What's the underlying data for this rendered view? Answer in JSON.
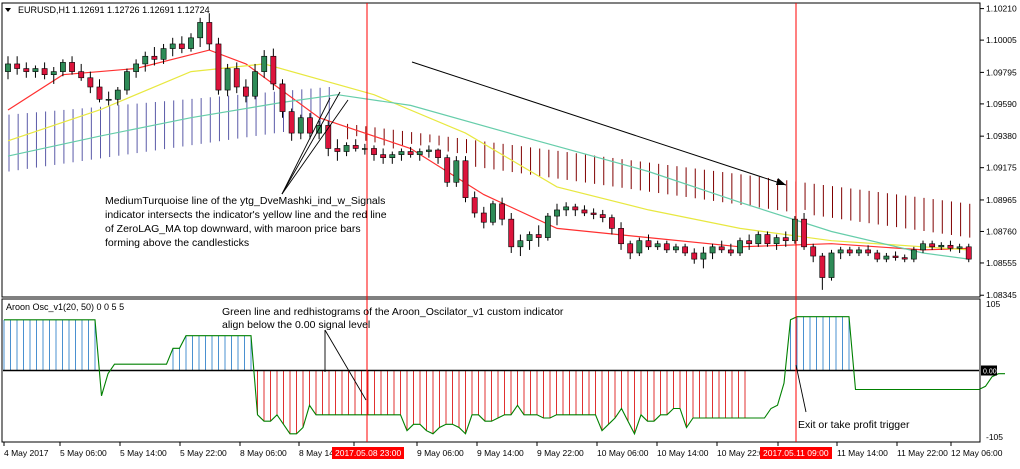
{
  "main_panel": {
    "symbol_label": "EURUSD,H1",
    "ohlc_label": "1.12691 1.12726 1.12691 1.12724",
    "y_ticks": [
      "1.10210",
      "1.10005",
      "1.09795",
      "1.09590",
      "1.09380",
      "1.09175",
      "1.08965",
      "1.08760",
      "1.08555",
      "1.08345"
    ],
    "annotation": [
      "MediumTurquoise line of the ytg_DveMashki_ind_w_Signals",
      "indicator intersects the indicator's yellow line and the red line",
      "of ZeroLAG_MA  top downward, with maroon price bars",
      "forming above the candlesticks"
    ]
  },
  "osc_panel": {
    "title": "Aroon Osc_v1(20, 50) 0 0 5 5",
    "y_ticks": [
      "105",
      "-105"
    ],
    "level_label": "0.00",
    "annotation": [
      "Green line and redhistograms of the Aroon_Oscilator_v1 custom indicator",
      "align below the 0.00 signal level"
    ],
    "exit_label": "Exit or take profit trigger"
  },
  "x_axis": {
    "labels": [
      "4 May 2017",
      "5 May 06:00",
      "5 May 14:00",
      "5 May 22:00",
      "8 May 06:00",
      "8 May 14:00",
      "8 May 22:00",
      "9 May 06:00",
      "9 May 14:00",
      "9 May 22:00",
      "10 May 06:00",
      "10 May 14:00",
      "10 May 22:00",
      "11 May 06:00",
      "11 May 14:00",
      "11 May 22:00",
      "12 May 06:00"
    ],
    "markers": [
      "2017.05.08 23:00",
      "2017.05.11 09:00"
    ]
  },
  "colors": {
    "bull": "#2e8b57",
    "bear": "#dc143c",
    "zerolag": "#ff3030",
    "yellow": "#e8e840",
    "turquoise": "#66cdaa",
    "blue_bars": "#5a5aa8",
    "maroon_bars": "#800000",
    "osc_line": "#008000",
    "osc_red": "#e03030",
    "osc_blue": "#4a90d0",
    "marker": "#ff0000"
  },
  "chart_data": [
    {
      "type": "candlestick",
      "x_range": [
        "2017-05-04",
        "2017-05-12 06:00"
      ],
      "ylim": [
        1.0834,
        1.1024
      ],
      "markers": [
        "2017.05.08 23:00",
        "2017.05.11 09:00"
      ],
      "candles": [
        [
          1.098,
          1.099,
          1.0975,
          1.0985
        ],
        [
          1.0985,
          1.099,
          1.0978,
          1.0982
        ],
        [
          1.0982,
          1.0986,
          1.0976,
          1.098
        ],
        [
          1.098,
          1.0984,
          1.0976,
          1.0982
        ],
        [
          1.0982,
          1.0986,
          1.0975,
          1.0978
        ],
        [
          1.0978,
          1.0983,
          1.0972,
          1.098
        ],
        [
          1.098,
          1.0988,
          1.0977,
          1.0986
        ],
        [
          1.0986,
          1.099,
          1.0978,
          1.098
        ],
        [
          1.098,
          1.0985,
          1.0974,
          1.0976
        ],
        [
          1.0976,
          1.098,
          1.0966,
          1.097
        ],
        [
          1.097,
          1.0975,
          1.096,
          1.0962
        ],
        [
          1.0962,
          1.0967,
          1.0958,
          1.0962
        ],
        [
          1.0962,
          1.097,
          1.0958,
          1.0968
        ],
        [
          1.0968,
          1.0982,
          1.0965,
          1.098
        ],
        [
          1.098,
          1.0988,
          1.0976,
          1.0985
        ],
        [
          1.0985,
          1.0993,
          1.098,
          1.099
        ],
        [
          1.099,
          1.0996,
          1.0984,
          1.0988
        ],
        [
          1.0988,
          1.0998,
          1.0985,
          1.0995
        ],
        [
          1.0995,
          1.1002,
          1.099,
          1.0998
        ],
        [
          1.0998,
          1.1003,
          1.0992,
          1.0995
        ],
        [
          1.0995,
          1.1005,
          1.0993,
          1.1002
        ],
        [
          1.1002,
          1.1015,
          1.0996,
          1.1012
        ],
        [
          1.1012,
          1.1018,
          1.0994,
          1.0998
        ],
        [
          1.0998,
          1.1002,
          1.0965,
          1.0968
        ],
        [
          1.0968,
          1.0985,
          1.0964,
          1.0982
        ],
        [
          1.0982,
          1.0986,
          1.0966,
          1.097
        ],
        [
          1.097,
          1.0975,
          1.096,
          1.0964
        ],
        [
          1.0964,
          1.0985,
          1.0962,
          1.098
        ],
        [
          1.098,
          1.0994,
          1.0976,
          1.099
        ],
        [
          1.099,
          1.0995,
          1.0968,
          1.0972
        ],
        [
          1.0972,
          1.0975,
          1.095,
          1.0954
        ],
        [
          1.0954,
          1.0956,
          1.0935,
          1.094
        ],
        [
          1.094,
          1.0952,
          1.0936,
          1.095
        ],
        [
          1.095,
          1.0953,
          1.0936,
          1.094
        ],
        [
          1.094,
          1.0948,
          1.0936,
          1.0945
        ],
        [
          1.0945,
          1.0948,
          1.0925,
          1.093
        ],
        [
          1.093,
          1.0936,
          1.0922,
          1.0928
        ],
        [
          1.0928,
          1.0934,
          1.0925,
          1.0932
        ],
        [
          1.0932,
          1.0936,
          1.0928,
          1.093
        ],
        [
          1.093,
          1.0933,
          1.0926,
          1.093
        ],
        [
          1.093,
          1.0932,
          1.0922,
          1.0926
        ],
        [
          1.0926,
          1.093,
          1.092,
          1.0924
        ],
        [
          1.0924,
          1.0928,
          1.092,
          1.0926
        ],
        [
          1.0926,
          1.093,
          1.0922,
          1.0928
        ],
        [
          1.0928,
          1.0931,
          1.0924,
          1.0926
        ],
        [
          1.0926,
          1.093,
          1.0922,
          1.0928
        ],
        [
          1.0928,
          1.0932,
          1.0924,
          1.0929
        ],
        [
          1.0929,
          1.093,
          1.092,
          1.0924
        ],
        [
          1.0924,
          1.0926,
          1.0905,
          1.0908
        ],
        [
          1.0908,
          1.0925,
          1.0905,
          1.0922
        ],
        [
          1.0922,
          1.0925,
          1.0895,
          1.0898
        ],
        [
          1.0898,
          1.0902,
          1.0885,
          1.0888
        ],
        [
          1.0888,
          1.0892,
          1.0878,
          1.0882
        ],
        [
          1.0882,
          1.0896,
          1.088,
          1.0894
        ],
        [
          1.0894,
          1.0898,
          1.088,
          1.0884
        ],
        [
          1.0884,
          1.0888,
          1.0862,
          1.0866
        ],
        [
          1.0866,
          1.0874,
          1.086,
          1.087
        ],
        [
          1.087,
          1.0876,
          1.0864,
          1.0874
        ],
        [
          1.0874,
          1.088,
          1.0866,
          1.0872
        ],
        [
          1.0872,
          1.0888,
          1.087,
          1.0886
        ],
        [
          1.0886,
          1.0894,
          1.088,
          1.089
        ],
        [
          1.089,
          1.0895,
          1.0886,
          1.0892
        ],
        [
          1.0892,
          1.0894,
          1.0886,
          1.089
        ],
        [
          1.089,
          1.0893,
          1.0886,
          1.0888
        ],
        [
          1.0888,
          1.0891,
          1.0884,
          1.0887
        ],
        [
          1.0887,
          1.089,
          1.0882,
          1.0885
        ],
        [
          1.0885,
          1.0887,
          1.0874,
          1.0878
        ],
        [
          1.0878,
          1.0882,
          1.0864,
          1.0868
        ],
        [
          1.0868,
          1.087,
          1.0858,
          1.0862
        ],
        [
          1.0862,
          1.0872,
          1.086,
          1.087
        ],
        [
          1.087,
          1.0874,
          1.0864,
          1.0866
        ],
        [
          1.0866,
          1.087,
          1.0864,
          1.0868
        ],
        [
          1.0868,
          1.087,
          1.0862,
          1.0864
        ],
        [
          1.0864,
          1.0868,
          1.0862,
          1.0866
        ],
        [
          1.0866,
          1.0868,
          1.086,
          1.0862
        ],
        [
          1.0862,
          1.0865,
          1.0855,
          1.0858
        ],
        [
          1.0858,
          1.0866,
          1.0852,
          1.0862
        ],
        [
          1.0862,
          1.0868,
          1.0858,
          1.0866
        ],
        [
          1.0866,
          1.087,
          1.0862,
          1.0864
        ],
        [
          1.0864,
          1.0868,
          1.086,
          1.0862
        ],
        [
          1.0862,
          1.0872,
          1.086,
          1.087
        ],
        [
          1.087,
          1.0874,
          1.0864,
          1.0868
        ],
        [
          1.0868,
          1.0876,
          1.0866,
          1.0874
        ],
        [
          1.0874,
          1.0876,
          1.0866,
          1.0868
        ],
        [
          1.0868,
          1.0874,
          1.0864,
          1.0872
        ],
        [
          1.0872,
          1.0876,
          1.0866,
          1.087
        ],
        [
          1.087,
          1.0886,
          1.0868,
          1.0884
        ],
        [
          1.0884,
          1.0888,
          1.0864,
          1.0866
        ],
        [
          1.0866,
          1.0868,
          1.0856,
          1.086
        ],
        [
          1.086,
          1.0862,
          1.0838,
          1.0846
        ],
        [
          1.0846,
          1.0864,
          1.0844,
          1.0862
        ],
        [
          1.0862,
          1.0866,
          1.0858,
          1.0864
        ],
        [
          1.0864,
          1.0866,
          1.086,
          1.0862
        ],
        [
          1.0862,
          1.0866,
          1.086,
          1.0864
        ],
        [
          1.0864,
          1.0867,
          1.086,
          1.0862
        ],
        [
          1.0862,
          1.0864,
          1.0856,
          1.0858
        ],
        [
          1.0858,
          1.0862,
          1.0856,
          1.086
        ],
        [
          1.086,
          1.0863,
          1.0857,
          1.0859
        ],
        [
          1.0859,
          1.0861,
          1.0856,
          1.0858
        ],
        [
          1.0858,
          1.0866,
          1.0856,
          1.0864
        ],
        [
          1.0864,
          1.087,
          1.0862,
          1.0868
        ],
        [
          1.0868,
          1.087,
          1.0864,
          1.0866
        ],
        [
          1.0866,
          1.0869,
          1.0864,
          1.0867
        ],
        [
          1.0867,
          1.087,
          1.0863,
          1.0865
        ],
        [
          1.0865,
          1.0868,
          1.0862,
          1.0866
        ],
        [
          1.0866,
          1.0868,
          1.0856,
          1.0858
        ]
      ],
      "series": [
        {
          "type": "line",
          "name": "ZeroLAG_MA",
          "values": [
            [
              0,
              1.0955
            ],
            [
              6,
              1.0978
            ],
            [
              14,
              1.0982
            ],
            [
              22,
              1.0994
            ],
            [
              26,
              1.0985
            ],
            [
              34,
              1.095
            ],
            [
              44,
              1.093
            ],
            [
              52,
              1.09
            ],
            [
              60,
              1.0878
            ],
            [
              70,
              1.0872
            ],
            [
              80,
              1.0866
            ],
            [
              90,
              1.0868
            ],
            [
              100,
              1.0864
            ],
            [
              105,
              1.0865
            ]
          ]
        },
        {
          "type": "line",
          "name": "yellow",
          "values": [
            [
              0,
              1.0935
            ],
            [
              10,
              1.0955
            ],
            [
              20,
              1.098
            ],
            [
              28,
              1.0985
            ],
            [
              40,
              1.0965
            ],
            [
              50,
              1.094
            ],
            [
              60,
              1.0905
            ],
            [
              70,
              1.089
            ],
            [
              80,
              1.0878
            ],
            [
              90,
              1.087
            ],
            [
              100,
              1.0866
            ],
            [
              105,
              1.0864
            ]
          ]
        },
        {
          "type": "line",
          "name": "MediumTurquoise",
          "values": [
            [
              0,
              1.0925
            ],
            [
              10,
              1.0938
            ],
            [
              20,
              1.095
            ],
            [
              30,
              1.096
            ],
            [
              36,
              1.0965
            ],
            [
              44,
              1.0958
            ],
            [
              56,
              1.0938
            ],
            [
              70,
              1.0915
            ],
            [
              80,
              1.0895
            ],
            [
              90,
              1.0876
            ],
            [
              100,
              1.0862
            ],
            [
              105,
              1.0858
            ]
          ]
        },
        {
          "type": "histogram",
          "name": "blue bars",
          "x_range": [
            0,
            35
          ],
          "span": [
            1.0915,
            1.0966
          ]
        },
        {
          "type": "histogram",
          "name": "maroon bars",
          "x_range": [
            37,
            105
          ],
          "span": [
            1.0946,
            1.0894
          ]
        }
      ]
    },
    {
      "type": "line",
      "title": "Aroon Osc_v1(20, 50) 0 0 5 5",
      "ylim": [
        -105,
        105
      ],
      "y_ticks": [
        105,
        -105
      ],
      "values": [
        80,
        80,
        80,
        80,
        80,
        80,
        80,
        80,
        80,
        80,
        80,
        80,
        80,
        80,
        80,
        -40,
        -5,
        10,
        10,
        10,
        10,
        10,
        10,
        10,
        10,
        10,
        35,
        35,
        55,
        55,
        55,
        55,
        55,
        55,
        55,
        55,
        55,
        55,
        55,
        -70,
        -80,
        -80,
        -70,
        -85,
        -100,
        -100,
        -90,
        -55,
        -70,
        -70,
        -70,
        -70,
        -70,
        -70,
        -70,
        -70,
        -70,
        -70,
        -70,
        -70,
        -70,
        -70,
        -95,
        -85,
        -85,
        -95,
        -100,
        -90,
        -85,
        -85,
        -90,
        -100,
        -70,
        -70,
        -80,
        -80,
        -75,
        -70,
        -70,
        -55,
        -70,
        -70,
        -70,
        -75,
        -75,
        -70,
        -70,
        -70,
        -70,
        -70,
        -70,
        -70,
        -95,
        -85,
        -75,
        -60,
        -80,
        -100,
        -70,
        -80,
        -80,
        -70,
        -70,
        -60,
        -60,
        -90,
        -75,
        -75,
        -75,
        -75,
        -75,
        -75,
        -75,
        -75,
        -75,
        -75,
        -75,
        -75,
        -60,
        -55,
        -20,
        80,
        85,
        85,
        85,
        85,
        85,
        85,
        85,
        85,
        85,
        -30,
        -30,
        -30,
        -30,
        -30,
        -30,
        -30,
        -30,
        -30,
        -30,
        -30,
        -30,
        -30,
        -30,
        -30,
        -30,
        -30,
        -30,
        -30,
        -30,
        -25,
        -10,
        -5,
        -5
      ]
    }
  ]
}
